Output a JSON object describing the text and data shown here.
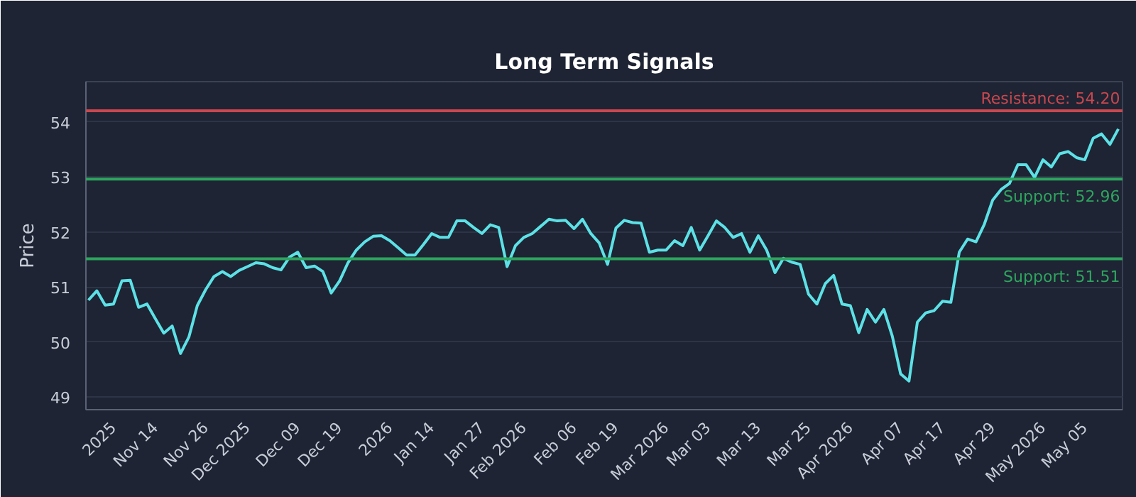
{
  "chart_data": {
    "type": "line",
    "title": "Long Term Signals",
    "ylabel": "Price",
    "categories": [
      null,
      null,
      null,
      "2025",
      null,
      null,
      null,
      null,
      "Nov 14",
      null,
      null,
      null,
      null,
      null,
      "Nov 26",
      null,
      null,
      null,
      null,
      "Dec 2025",
      null,
      null,
      null,
      null,
      null,
      "Dec 09",
      null,
      null,
      null,
      null,
      "Dec 19",
      null,
      null,
      null,
      null,
      null,
      "2026",
      null,
      null,
      null,
      null,
      "Jan 14",
      null,
      null,
      null,
      null,
      null,
      "Jan 27",
      null,
      null,
      null,
      null,
      "Feb 2026",
      null,
      null,
      null,
      null,
      null,
      "Feb 06",
      null,
      null,
      null,
      null,
      "Feb 19",
      null,
      null,
      null,
      null,
      null,
      "Mar 2026",
      null,
      null,
      null,
      null,
      "Mar 03",
      null,
      null,
      null,
      null,
      null,
      "Mar 13",
      null,
      null,
      null,
      null,
      null,
      "Mar 25",
      null,
      null,
      null,
      null,
      "Apr 2026",
      null,
      null,
      null,
      null,
      null,
      "Apr 07",
      null,
      null,
      null,
      null,
      "Apr 17",
      null,
      null,
      null,
      null,
      null,
      "Apr 29",
      null,
      null,
      null,
      null,
      null,
      "May 2026",
      null,
      null,
      null,
      null,
      "May 05",
      null,
      null,
      null,
      null
    ],
    "series": [
      {
        "color": "#5ce1e6",
        "values": [
          50.76,
          50.93,
          50.67,
          50.69,
          51.11,
          51.12,
          50.63,
          50.69,
          50.42,
          50.16,
          50.29,
          49.79,
          50.09,
          50.66,
          50.95,
          51.19,
          51.28,
          51.19,
          51.3,
          51.37,
          51.44,
          51.42,
          51.35,
          51.31,
          51.54,
          51.63,
          51.35,
          51.38,
          51.28,
          50.89,
          51.11,
          51.44,
          51.67,
          51.82,
          51.92,
          51.93,
          51.84,
          51.71,
          51.58,
          51.58,
          51.77,
          51.97,
          51.9,
          51.9,
          52.2,
          52.2,
          52.08,
          51.97,
          52.13,
          52.08,
          51.37,
          51.75,
          51.9,
          51.97,
          52.1,
          52.23,
          52.2,
          52.21,
          52.06,
          52.23,
          51.97,
          51.8,
          51.41,
          52.07,
          52.21,
          52.17,
          52.16,
          51.63,
          51.67,
          51.67,
          51.84,
          51.75,
          52.08,
          51.67,
          51.93,
          52.2,
          52.08,
          51.9,
          51.97,
          51.63,
          51.93,
          51.67,
          51.26,
          51.52,
          51.45,
          51.41,
          50.87,
          50.69,
          51.06,
          51.21,
          50.69,
          50.66,
          50.17,
          50.59,
          50.36,
          50.59,
          50.11,
          49.42,
          49.29,
          50.36,
          50.53,
          50.57,
          50.74,
          50.72,
          51.63,
          51.87,
          51.82,
          52.14,
          52.58,
          52.77,
          52.88,
          53.22,
          53.22,
          52.99,
          53.31,
          53.18,
          53.42,
          53.46,
          53.35,
          53.31,
          53.7,
          53.78,
          53.59,
          53.87
        ]
      }
    ],
    "ylim": [
      48.77,
      54.73
    ],
    "yticks": [
      49,
      50,
      51,
      52,
      53,
      54
    ],
    "grid": "y",
    "marker": "none",
    "line_style": "solid",
    "ref_lines": [
      {
        "axis": "y",
        "value": 54.2,
        "label": "Resistance: 54.20",
        "color": "#c9474f"
      },
      {
        "axis": "y",
        "value": 52.96,
        "label": "Support: 52.96",
        "color": "#2ea55f"
      },
      {
        "axis": "y",
        "value": 51.51,
        "label": "Support: 51.51",
        "color": "#2ea55f"
      }
    ]
  }
}
